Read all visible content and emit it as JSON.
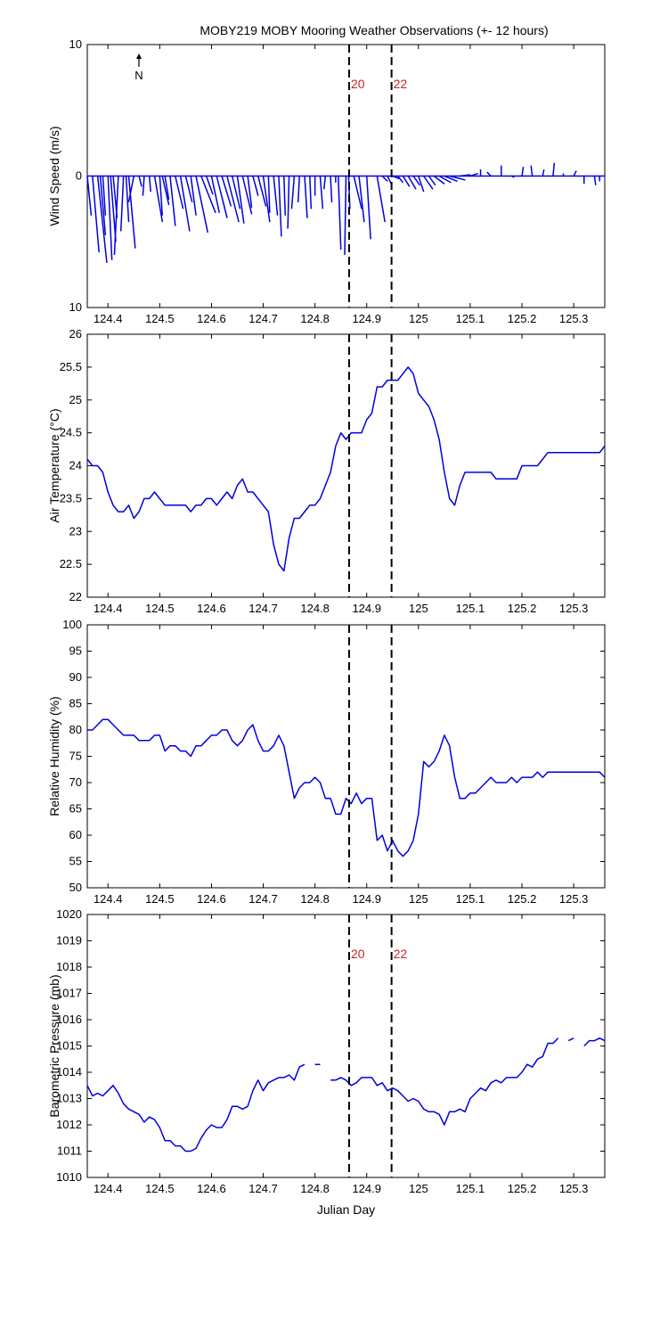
{
  "title": "MOBY219 MOBY Mooring Weather Observations (+- 12 hours)",
  "north_label": "N",
  "colors": {
    "series": "#0000dd",
    "marker_label": "#cc2222",
    "axes": "#000000"
  },
  "chart_data": [
    {
      "type": "vector",
      "ylabel": "Wind Speed (m/s)",
      "xlim": [
        124.36,
        125.36
      ],
      "ylim": [
        -10,
        10
      ],
      "yticks": [
        -10,
        0,
        10
      ],
      "ytick_labels": [
        "10",
        "0",
        "10"
      ],
      "xticks": [
        124.4,
        124.5,
        124.6,
        124.7,
        124.8,
        124.9,
        125,
        125.1,
        125.2,
        125.3
      ],
      "xtick_labels": [
        "124.4",
        "124.5",
        "124.6",
        "124.7",
        "124.8",
        "124.9",
        "125",
        "125.1",
        "125.2",
        "125.3"
      ],
      "vertical_markers": [
        124.866,
        124.948
      ],
      "marker_labels": [
        "20",
        "22"
      ],
      "x": [
        124.36,
        124.37,
        124.38,
        124.385,
        124.39,
        124.4,
        124.405,
        124.41,
        124.42,
        124.43,
        124.435,
        124.44,
        124.45,
        124.46,
        124.47,
        124.48,
        124.49,
        124.5,
        124.505,
        124.51,
        124.52,
        124.53,
        124.54,
        124.55,
        124.56,
        124.57,
        124.58,
        124.59,
        124.6,
        124.61,
        124.62,
        124.63,
        124.64,
        124.65,
        124.66,
        124.67,
        124.68,
        124.69,
        124.7,
        124.71,
        124.72,
        124.73,
        124.74,
        124.75,
        124.76,
        124.77,
        124.78,
        124.79,
        124.8,
        124.81,
        124.82,
        124.83,
        124.84,
        124.845,
        124.86,
        124.865,
        124.875,
        124.885,
        124.9,
        124.92,
        124.93,
        124.94,
        124.95,
        124.96,
        124.97,
        124.98,
        124.99,
        125.0,
        125.01,
        125.02,
        125.03,
        125.04,
        125.05,
        125.06,
        125.08,
        125.1,
        125.12,
        125.14,
        125.16,
        125.18,
        125.2,
        125.22,
        125.24,
        125.26,
        125.28,
        125.3,
        125.32,
        125.34,
        125.35
      ],
      "u": [
        0.3,
        0.5,
        0.7,
        0.4,
        0.2,
        0.3,
        0.4,
        0.3,
        -0.3,
        -0.2,
        0.2,
        0.5,
        -0.4,
        0.2,
        -0.1,
        0.1,
        0.6,
        0.2,
        0.5,
        0.3,
        0.4,
        0.6,
        0.7,
        0.5,
        0.4,
        0.9,
        1.1,
        0.5,
        0.6,
        0.8,
        0.7,
        0.9,
        0.6,
        0.5,
        0.7,
        0.3,
        0.4,
        0.6,
        0.5,
        0.1,
        0.3,
        0.2,
        0.1,
        -0.1,
        -0.2,
        -0.1,
        0.2,
        0.1,
        0.0,
        0.2,
        -0.1,
        0.1,
        0.0,
        0.2,
        -0.1,
        0.1,
        0.6,
        0.4,
        0.3,
        0.6,
        0.4,
        0.3,
        0.5,
        0.4,
        0.5,
        0.6,
        0.5,
        0.4,
        0.7,
        0.5,
        0.8,
        0.9,
        1.0,
        1.2,
        0.8,
        0.6,
        0.0,
        -0.3,
        0.0,
        0.2,
        0.1,
        -0.1,
        0.1,
        0.1,
        0.0,
        0.2,
        0.0,
        0.1,
        0.0
      ],
      "v": [
        -3.0,
        -5.8,
        -6.6,
        -4.5,
        -3.0,
        -6.4,
        -5.0,
        -3.2,
        -6.0,
        -4.2,
        -3.5,
        -5.5,
        -2.0,
        -0.8,
        -1.5,
        -1.2,
        -3.5,
        -3.0,
        -2.2,
        -1.8,
        -3.8,
        -2.5,
        -4.2,
        -2.0,
        -3.0,
        -4.3,
        -2.8,
        -1.4,
        -2.8,
        -3.2,
        -2.3,
        -3.5,
        -2.5,
        -3.6,
        -2.9,
        -2.4,
        -1.5,
        -2.3,
        -3.5,
        -2.8,
        -3.0,
        -4.6,
        -3.0,
        -4.0,
        -2.5,
        -2.0,
        -3.2,
        -2.5,
        -1.5,
        -2.5,
        -1.0,
        -2.0,
        -0.5,
        -5.6,
        -6.0,
        -2.5,
        -2.5,
        -3.5,
        -4.8,
        -3.5,
        -0.4,
        -0.6,
        -0.2,
        -0.5,
        -0.8,
        -1.0,
        -0.7,
        -1.2,
        -1.0,
        -0.7,
        -0.6,
        -0.5,
        -0.4,
        -0.3,
        0.1,
        0.2,
        0.5,
        0.3,
        0.8,
        -0.1,
        0.7,
        0.8,
        0.5,
        1.0,
        0.2,
        0.4,
        -0.6,
        -0.7,
        -0.4
      ]
    },
    {
      "type": "line",
      "ylabel": "Air Temperature (°C)",
      "xlim": [
        124.36,
        125.36
      ],
      "ylim": [
        22,
        26
      ],
      "yticks": [
        22,
        22.5,
        23,
        23.5,
        24,
        24.5,
        25,
        25.5,
        26
      ],
      "ytick_labels": [
        "22",
        "22.5",
        "23",
        "23.5",
        "24",
        "24.5",
        "25",
        "25.5",
        "26"
      ],
      "xticks": [
        124.4,
        124.5,
        124.6,
        124.7,
        124.8,
        124.9,
        125,
        125.1,
        125.2,
        125.3
      ],
      "xtick_labels": [
        "124.4",
        "124.5",
        "124.6",
        "124.7",
        "124.8",
        "124.9",
        "125",
        "125.1",
        "125.2",
        "125.3"
      ],
      "vertical_markers": [
        124.866,
        124.948
      ],
      "x": [
        124.36,
        124.37,
        124.38,
        124.39,
        124.4,
        124.41,
        124.42,
        124.43,
        124.44,
        124.45,
        124.46,
        124.47,
        124.48,
        124.49,
        124.5,
        124.51,
        124.52,
        124.53,
        124.54,
        124.55,
        124.56,
        124.57,
        124.58,
        124.59,
        124.6,
        124.61,
        124.62,
        124.63,
        124.64,
        124.65,
        124.66,
        124.67,
        124.68,
        124.69,
        124.7,
        124.71,
        124.72,
        124.73,
        124.74,
        124.75,
        124.76,
        124.77,
        124.78,
        124.79,
        124.8,
        124.81,
        124.82,
        124.83,
        124.84,
        124.85,
        124.86,
        124.87,
        124.88,
        124.89,
        124.9,
        124.91,
        124.92,
        124.93,
        124.94,
        124.95,
        124.96,
        124.97,
        124.98,
        124.99,
        125.0,
        125.01,
        125.02,
        125.03,
        125.04,
        125.05,
        125.06,
        125.07,
        125.08,
        125.09,
        125.1,
        125.11,
        125.12,
        125.13,
        125.14,
        125.15,
        125.16,
        125.17,
        125.18,
        125.19,
        125.2,
        125.21,
        125.22,
        125.23,
        125.24,
        125.25,
        125.26,
        125.27,
        125.28,
        125.29,
        125.3,
        125.31,
        125.32,
        125.33,
        125.34,
        125.35,
        125.36
      ],
      "y": [
        24.1,
        24.0,
        24.0,
        23.9,
        23.6,
        23.4,
        23.3,
        23.3,
        23.4,
        23.2,
        23.3,
        23.5,
        23.5,
        23.6,
        23.5,
        23.4,
        23.4,
        23.4,
        23.4,
        23.4,
        23.3,
        23.4,
        23.4,
        23.5,
        23.5,
        23.4,
        23.5,
        23.6,
        23.5,
        23.7,
        23.8,
        23.6,
        23.6,
        23.5,
        23.4,
        23.3,
        22.8,
        22.5,
        22.4,
        22.9,
        23.2,
        23.2,
        23.3,
        23.4,
        23.4,
        23.5,
        23.7,
        23.9,
        24.3,
        24.5,
        24.4,
        24.5,
        24.5,
        24.5,
        24.7,
        24.8,
        25.2,
        25.2,
        25.3,
        25.3,
        25.3,
        25.4,
        25.5,
        25.4,
        25.1,
        25.0,
        24.9,
        24.7,
        24.4,
        23.9,
        23.5,
        23.4,
        23.7,
        23.9,
        23.9,
        23.9,
        23.9,
        23.9,
        23.9,
        23.8,
        23.8,
        23.8,
        23.8,
        23.8,
        24.0,
        24.0,
        24.0,
        24.0,
        24.1,
        24.2,
        24.2,
        24.2,
        24.2,
        24.2,
        24.2,
        24.2,
        24.2,
        24.2,
        24.2,
        24.2,
        24.3
      ]
    },
    {
      "type": "line",
      "ylabel": "Relative Humidity (%)",
      "xlim": [
        124.36,
        125.36
      ],
      "ylim": [
        50,
        100
      ],
      "yticks": [
        50,
        55,
        60,
        65,
        70,
        75,
        80,
        85,
        90,
        95,
        100
      ],
      "ytick_labels": [
        "50",
        "55",
        "60",
        "65",
        "70",
        "75",
        "80",
        "85",
        "90",
        "95",
        "100"
      ],
      "xticks": [
        124.4,
        124.5,
        124.6,
        124.7,
        124.8,
        124.9,
        125,
        125.1,
        125.2,
        125.3
      ],
      "xtick_labels": [
        "124.4",
        "124.5",
        "124.6",
        "124.7",
        "124.8",
        "124.9",
        "125",
        "125.1",
        "125.2",
        "125.3"
      ],
      "vertical_markers": [
        124.866,
        124.948
      ],
      "x": [
        124.36,
        124.37,
        124.38,
        124.39,
        124.4,
        124.41,
        124.42,
        124.43,
        124.44,
        124.45,
        124.46,
        124.47,
        124.48,
        124.49,
        124.5,
        124.51,
        124.52,
        124.53,
        124.54,
        124.55,
        124.56,
        124.57,
        124.58,
        124.59,
        124.6,
        124.61,
        124.62,
        124.63,
        124.64,
        124.65,
        124.66,
        124.67,
        124.68,
        124.69,
        124.7,
        124.71,
        124.72,
        124.73,
        124.74,
        124.75,
        124.76,
        124.77,
        124.78,
        124.79,
        124.8,
        124.81,
        124.82,
        124.83,
        124.84,
        124.85,
        124.86,
        124.87,
        124.88,
        124.89,
        124.9,
        124.91,
        124.92,
        124.93,
        124.94,
        124.95,
        124.96,
        124.97,
        124.98,
        124.99,
        125.0,
        125.01,
        125.02,
        125.03,
        125.04,
        125.05,
        125.06,
        125.07,
        125.08,
        125.09,
        125.1,
        125.11,
        125.12,
        125.13,
        125.14,
        125.15,
        125.16,
        125.17,
        125.18,
        125.19,
        125.2,
        125.21,
        125.22,
        125.23,
        125.24,
        125.25,
        125.26,
        125.27,
        125.28,
        125.29,
        125.3,
        125.31,
        125.32,
        125.33,
        125.34,
        125.35,
        125.36
      ],
      "y": [
        80,
        80,
        81,
        82,
        82,
        81,
        80,
        79,
        79,
        79,
        78,
        78,
        78,
        79,
        79,
        76,
        77,
        77,
        76,
        76,
        75,
        77,
        77,
        78,
        79,
        79,
        80,
        80,
        78,
        77,
        78,
        80,
        81,
        78,
        76,
        76,
        77,
        79,
        77,
        72,
        67,
        69,
        70,
        70,
        71,
        70,
        67,
        67,
        64,
        64,
        67,
        66,
        68,
        66,
        67,
        67,
        59,
        60,
        57,
        59,
        57,
        56,
        57,
        59,
        64,
        74,
        73,
        74,
        76,
        79,
        77,
        71,
        67,
        67,
        68,
        68,
        69,
        70,
        71,
        70,
        70,
        70,
        71,
        70,
        71,
        71,
        71,
        72,
        71,
        72,
        72,
        72,
        72,
        72,
        72,
        72,
        72,
        72,
        72,
        72,
        71
      ]
    },
    {
      "type": "line",
      "ylabel": "Barometric Pressure (mb)",
      "xlim": [
        124.36,
        125.36
      ],
      "ylim": [
        1010,
        1020
      ],
      "yticks": [
        1010,
        1011,
        1012,
        1013,
        1014,
        1015,
        1016,
        1017,
        1018,
        1019,
        1020
      ],
      "ytick_labels": [
        "1010",
        "1011",
        "1012",
        "1013",
        "1014",
        "1015",
        "1016",
        "1017",
        "1018",
        "1019",
        "1020"
      ],
      "xticks": [
        124.4,
        124.5,
        124.6,
        124.7,
        124.8,
        124.9,
        125,
        125.1,
        125.2,
        125.3
      ],
      "xtick_labels": [
        "124.4",
        "124.5",
        "124.6",
        "124.7",
        "124.8",
        "124.9",
        "125",
        "125.1",
        "125.2",
        "125.3"
      ],
      "xlabel": "Julian Day",
      "vertical_markers": [
        124.866,
        124.948
      ],
      "marker_labels": [
        "20",
        "22"
      ],
      "x": [
        124.36,
        124.37,
        124.38,
        124.39,
        124.4,
        124.41,
        124.42,
        124.43,
        124.44,
        124.45,
        124.46,
        124.47,
        124.48,
        124.49,
        124.5,
        124.51,
        124.52,
        124.53,
        124.54,
        124.55,
        124.56,
        124.57,
        124.58,
        124.59,
        124.6,
        124.61,
        124.62,
        124.63,
        124.64,
        124.65,
        124.66,
        124.67,
        124.68,
        124.69,
        124.7,
        124.71,
        124.72,
        124.73,
        124.74,
        124.75,
        124.76,
        124.77,
        124.78,
        124.79,
        124.8,
        124.81,
        null,
        124.83,
        124.84,
        124.85,
        124.86,
        124.87,
        124.88,
        124.89,
        124.9,
        124.91,
        124.92,
        124.93,
        124.94,
        124.95,
        124.96,
        124.97,
        124.98,
        124.99,
        125.0,
        125.01,
        125.02,
        125.03,
        125.04,
        125.05,
        125.06,
        125.07,
        125.08,
        125.09,
        125.1,
        125.11,
        125.12,
        125.13,
        125.14,
        125.15,
        125.16,
        125.17,
        125.18,
        125.19,
        125.2,
        125.21,
        125.22,
        125.23,
        125.24,
        125.25,
        125.26,
        125.27,
        125.28,
        125.29,
        125.3,
        null,
        125.32,
        125.33,
        125.34,
        125.35,
        125.36
      ],
      "y": [
        1013.5,
        1013.1,
        1013.2,
        1013.1,
        1013.3,
        1013.5,
        1013.2,
        1012.8,
        1012.6,
        1012.5,
        1012.4,
        1012.1,
        1012.3,
        1012.2,
        1011.9,
        1011.4,
        1011.4,
        1011.2,
        1011.2,
        1011.0,
        1011.0,
        1011.1,
        1011.5,
        1011.8,
        1012.0,
        1011.9,
        1011.9,
        1012.2,
        1012.7,
        1012.7,
        1012.6,
        1012.7,
        1013.3,
        1013.7,
        1013.3,
        1013.6,
        1013.7,
        1013.8,
        1013.8,
        1013.9,
        1013.7,
        1014.2,
        1014.3,
        null,
        1014.3,
        1014.3,
        null,
        1013.7,
        1013.7,
        1013.8,
        1013.7,
        1013.5,
        1013.6,
        1013.8,
        1013.8,
        1013.8,
        1013.5,
        1013.6,
        1013.3,
        1013.4,
        1013.3,
        1013.1,
        1012.9,
        1013.0,
        1012.9,
        1012.6,
        1012.5,
        1012.5,
        1012.4,
        1012.0,
        1012.5,
        1012.5,
        1012.6,
        1012.5,
        1013.0,
        1013.2,
        1013.4,
        1013.3,
        1013.6,
        1013.7,
        1013.6,
        1013.8,
        1013.8,
        1013.8,
        1014.0,
        1014.3,
        1014.2,
        1014.5,
        1014.6,
        1015.1,
        1015.1,
        1015.3,
        null,
        1015.2,
        1015.3,
        1015.0,
        1015.0,
        1015.2,
        1015.2,
        1015.3,
        1015.2
      ]
    }
  ]
}
